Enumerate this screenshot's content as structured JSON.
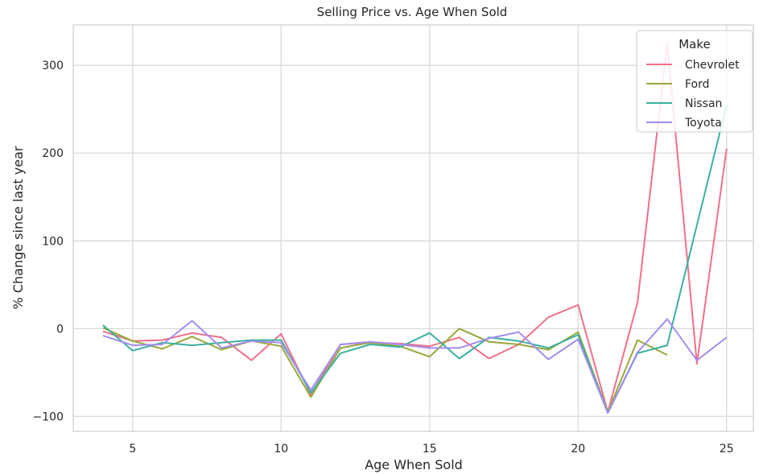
{
  "chart_data": {
    "type": "line",
    "title": "Selling Price vs. Age When Sold",
    "xlabel": "Age When Sold",
    "ylabel": "% Change since last year",
    "xlim": [
      3.0,
      25.9
    ],
    "ylim": [
      -117,
      346
    ],
    "xticks": [
      5,
      10,
      15,
      20,
      25
    ],
    "yticks": [
      -100,
      0,
      100,
      200,
      300
    ],
    "grid": true,
    "legend": {
      "title": "Make",
      "placement": "top-right"
    },
    "series": [
      {
        "name": "Chevrolet",
        "color": "#f0708a",
        "x": [
          4,
          5,
          6,
          7,
          8,
          9,
          10,
          11,
          12,
          13,
          14,
          15,
          16,
          17,
          18,
          19,
          20,
          21,
          22,
          23,
          24,
          25
        ],
        "y": [
          -3,
          -14,
          -13,
          -5,
          -10,
          -36,
          -6,
          -75,
          -18,
          -16,
          -17,
          -20,
          -10,
          -34,
          -18,
          13,
          27,
          -95,
          30,
          325,
          -40,
          205
        ]
      },
      {
        "name": "Ford",
        "color": "#98a83a",
        "x": [
          4,
          5,
          6,
          7,
          8,
          9,
          10,
          11,
          12,
          13,
          14,
          15,
          16,
          17,
          18,
          19,
          20,
          21,
          22,
          23
        ],
        "y": [
          1,
          -14,
          -23,
          -9,
          -24,
          -14,
          -20,
          -78,
          -22,
          -16,
          -20,
          -32,
          0,
          -15,
          -18,
          -24,
          -4,
          -95,
          -13,
          -30
        ]
      },
      {
        "name": "Nissan",
        "color": "#3bb0a0",
        "x": [
          4,
          5,
          6,
          7,
          8,
          9,
          10,
          11,
          12,
          13,
          14,
          15,
          16,
          17,
          18,
          19,
          20,
          21,
          22,
          23,
          25
        ],
        "y": [
          4,
          -25,
          -16,
          -19,
          -16,
          -13,
          -13,
          -73,
          -28,
          -18,
          -21,
          -5,
          -34,
          -10,
          -14,
          -22,
          -7,
          -96,
          -28,
          -19,
          255
        ]
      },
      {
        "name": "Toyota",
        "color": "#a48cf0",
        "x": [
          4,
          5,
          6,
          7,
          8,
          9,
          10,
          11,
          12,
          13,
          14,
          15,
          16,
          17,
          18,
          19,
          20,
          21,
          22,
          23,
          24,
          25
        ],
        "y": [
          -8,
          -19,
          -18,
          9,
          -22,
          -14,
          -16,
          -70,
          -18,
          -15,
          -18,
          -22,
          -22,
          -11,
          -4,
          -35,
          -12,
          -96,
          -27,
          11,
          -36,
          -10
        ]
      }
    ]
  }
}
